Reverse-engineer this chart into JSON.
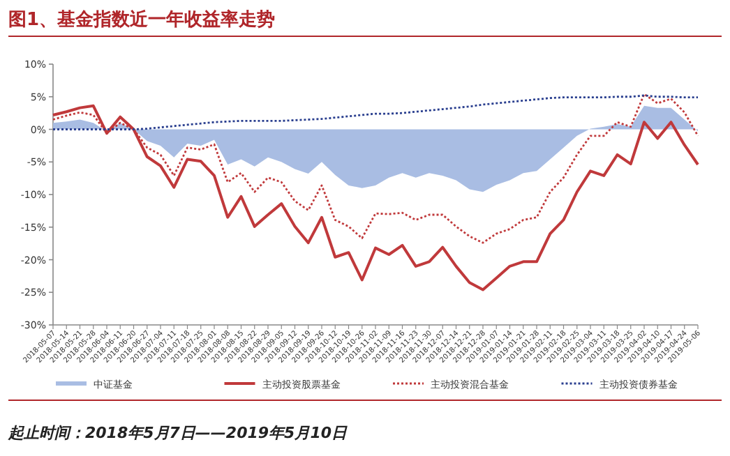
{
  "chart_data": {
    "type": "line",
    "title": "图1、基金指数近一年收益率走势",
    "categories": [
      "2018-05-07",
      "2018-05-14",
      "2018-05-21",
      "2018-05-28",
      "2018-06-04",
      "2018-06-11",
      "2018-06-20",
      "2018-06-27",
      "2018-07-04",
      "2018-07-11",
      "2018-07-18",
      "2018-07-25",
      "2018-08-01",
      "2018-08-08",
      "2018-08-15",
      "2018-08-22",
      "2018-08-29",
      "2018-09-05",
      "2018-09-12",
      "2018-09-19",
      "2018-09-26",
      "2018-10-12",
      "2018-10-19",
      "2018-10-26",
      "2018-11-02",
      "2018-11-09",
      "2018-11-16",
      "2018-11-23",
      "2018-11-30",
      "2018-12-07",
      "2018-12-14",
      "2018-12-21",
      "2018-12-28",
      "2019-01-07",
      "2019-01-14",
      "2019-01-21",
      "2019-01-28",
      "2019-02-11",
      "2019-02-18",
      "2019-02-25",
      "2019-03-04",
      "2019-03-11",
      "2019-03-18",
      "2019-03-25",
      "2019-04-02",
      "2019-04-10",
      "2019-04-17",
      "2019-04-24",
      "2019-05-06"
    ],
    "series": [
      {
        "name": "中证基金",
        "type": "area",
        "color": "#a9bde3",
        "values": [
          1.0,
          1.2,
          1.5,
          1.0,
          -0.3,
          1.0,
          0,
          -1.8,
          -2.5,
          -4.3,
          -2.2,
          -2.5,
          -1.6,
          -5.4,
          -4.6,
          -5.7,
          -4.3,
          -5.0,
          -6.1,
          -6.8,
          -5.0,
          -7.0,
          -8.6,
          -9.0,
          -8.6,
          -7.4,
          -6.7,
          -7.4,
          -6.7,
          -7.1,
          -7.8,
          -9.2,
          -9.6,
          -8.5,
          -7.8,
          -6.7,
          -6.4,
          -4.6,
          -2.8,
          -1.0,
          0.1,
          0.4,
          0.8,
          0.4,
          3.6,
          3.3,
          3.3,
          1.5,
          -0.3
        ]
      },
      {
        "name": "主动投资股票基金",
        "type": "line",
        "line_style": "solid",
        "color": "#c0393b",
        "values": [
          2.2,
          2.7,
          3.3,
          3.6,
          -0.6,
          1.9,
          0,
          -4.2,
          -5.6,
          -8.9,
          -4.6,
          -4.9,
          -7.1,
          -13.5,
          -10.3,
          -14.9,
          -13.1,
          -11.4,
          -14.9,
          -17.4,
          -13.5,
          -19.6,
          -18.9,
          -23.1,
          -18.2,
          -19.2,
          -17.8,
          -21.0,
          -20.3,
          -18.1,
          -21.0,
          -23.5,
          -24.6,
          -22.8,
          -21.0,
          -20.3,
          -20.3,
          -16.0,
          -13.9,
          -9.6,
          -6.4,
          -7.1,
          -3.9,
          -5.3,
          1.1,
          -1.4,
          1.1,
          -2.4,
          -5.4
        ]
      },
      {
        "name": "主动投资混合基金",
        "type": "line",
        "line_style": "dotted",
        "color": "#c0393b",
        "values": [
          1.5,
          2.1,
          2.6,
          2.2,
          -0.6,
          1.0,
          0,
          -2.8,
          -3.9,
          -7.1,
          -2.8,
          -3.1,
          -2.3,
          -8.1,
          -6.7,
          -9.6,
          -7.4,
          -8.1,
          -11.0,
          -12.4,
          -8.6,
          -13.9,
          -14.9,
          -16.7,
          -12.9,
          -13.0,
          -12.8,
          -13.9,
          -13.1,
          -13.1,
          -14.9,
          -16.4,
          -17.4,
          -16.0,
          -15.3,
          -13.9,
          -13.5,
          -9.6,
          -7.4,
          -3.9,
          -1.0,
          -1.0,
          1.1,
          0.4,
          5.4,
          4.0,
          4.7,
          2.6,
          -1.0
        ]
      },
      {
        "name": "主动投资债券基金",
        "type": "line",
        "line_style": "dotted",
        "color": "#2a3f8f",
        "values": [
          0,
          0,
          0,
          0,
          0,
          0,
          0,
          0.1,
          0.3,
          0.5,
          0.7,
          0.9,
          1.1,
          1.2,
          1.3,
          1.3,
          1.3,
          1.3,
          1.4,
          1.5,
          1.6,
          1.8,
          2.0,
          2.2,
          2.4,
          2.4,
          2.5,
          2.7,
          2.9,
          3.1,
          3.3,
          3.5,
          3.8,
          4.0,
          4.2,
          4.4,
          4.6,
          4.8,
          4.9,
          4.9,
          4.9,
          4.9,
          5.0,
          5.0,
          5.2,
          5.0,
          5.0,
          4.9,
          4.9
        ]
      }
    ],
    "ylim": [
      -30,
      10
    ],
    "yticks": [
      {
        "value": -30,
        "label": "-30%"
      },
      {
        "value": -25,
        "label": "-25%"
      },
      {
        "value": -20,
        "label": "-20%"
      },
      {
        "value": -15,
        "label": "-15%"
      },
      {
        "value": -10,
        "label": "-10%"
      },
      {
        "value": -5,
        "label": "-5%"
      },
      {
        "value": 0,
        "label": "0%"
      },
      {
        "value": 5,
        "label": "5%"
      },
      {
        "value": 10,
        "label": "10%"
      }
    ],
    "legend": "bottom",
    "annotations": [
      "起止时间：2018年5月7日——2019年5月10日"
    ]
  }
}
